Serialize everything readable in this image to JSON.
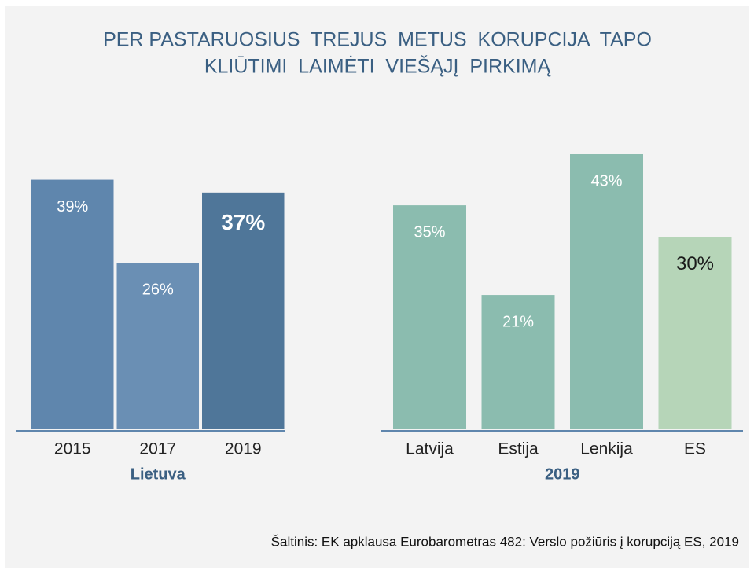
{
  "title": [
    "PER PASTARUOSIUS  TREJUS  METUS  KORUPCIJA  TAPO",
    "KLIŪTIMI  LAIMĖTI  VIEŠĄJĮ  PIRKIMĄ"
  ],
  "source": "Šaltinis: EK apklausa Eurobarometras 482: Verslo požiūris į korupciją ES, 2019",
  "chart_data": [
    {
      "type": "bar",
      "xlabel": "Lietuva",
      "categories": [
        "2015",
        "2017",
        "2019"
      ],
      "values": [
        39,
        26,
        37
      ],
      "value_labels": [
        "39%",
        "26%",
        "37%"
      ],
      "colors": [
        "#5f86ad",
        "#6a8fb4",
        "#4f7699"
      ],
      "label_colors": [
        "#ffffff",
        "#ffffff",
        "#ffffff"
      ],
      "bold_labels": [
        false,
        false,
        true
      ]
    },
    {
      "type": "bar",
      "xlabel": "2019",
      "categories": [
        "Latvija",
        "Estija",
        "Lenkija",
        "ES"
      ],
      "values": [
        35,
        21,
        43,
        30
      ],
      "value_labels": [
        "35%",
        "21%",
        "43%",
        "30%"
      ],
      "colors": [
        "#8bbcaf",
        "#8bbcaf",
        "#8bbcaf",
        "#b6d5b8"
      ],
      "label_colors": [
        "#ffffff",
        "#ffffff",
        "#ffffff",
        "#1a1a1a"
      ],
      "bold_labels": [
        false,
        false,
        false,
        false
      ]
    }
  ]
}
